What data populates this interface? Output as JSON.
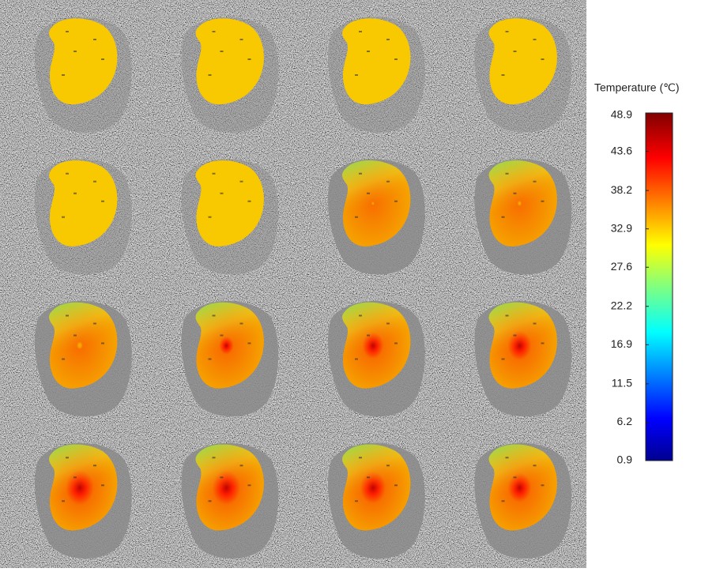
{
  "colorbar": {
    "title": "Temperature (℃)",
    "lim": [
      0.9,
      48.9
    ],
    "ticks": [
      48.9,
      43.6,
      38.2,
      32.9,
      27.6,
      22.2,
      16.9,
      11.5,
      6.2,
      0.9
    ]
  }
}
